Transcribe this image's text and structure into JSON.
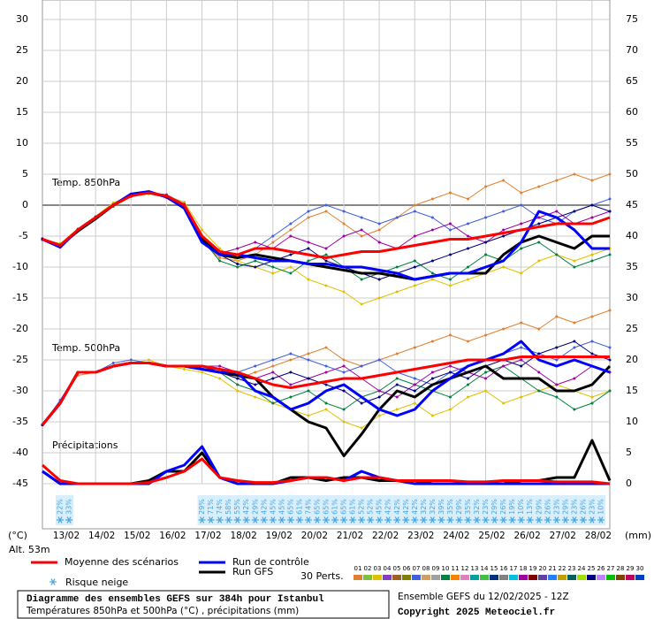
{
  "chart_data": {
    "type": "line",
    "title": "Diagramme des ensembles GEFS sur 384h pour Istanbul",
    "subtitle": "Températures 850hPa et 500hPa (°C) , précipitations (mm)",
    "ylabel": "(°C)",
    "y2label": "(mm)",
    "altitude": "Alt. 53m",
    "ylim": [
      -45,
      30
    ],
    "yticks": [
      -45,
      -40,
      -35,
      -30,
      -25,
      -20,
      -15,
      -10,
      -5,
      0,
      5,
      10,
      15,
      20,
      25,
      30
    ],
    "y2lim": [
      0,
      75
    ],
    "y2ticks": [
      0,
      5,
      10,
      15,
      20,
      25,
      30,
      35,
      40,
      45,
      50,
      55,
      60,
      65,
      70,
      75
    ],
    "grid": true,
    "categories": [
      "13/02",
      "14/02",
      "15/02",
      "16/02",
      "17/02",
      "18/02",
      "19/02",
      "20/02",
      "21/02",
      "22/02",
      "23/02",
      "24/02",
      "25/02",
      "26/02",
      "27/02",
      "28/02"
    ],
    "annotations": [
      "Temp. 850hPa",
      "Temp. 500hPa",
      "Précipitations"
    ],
    "series": [
      {
        "name": "Run GFS",
        "color": "#000000",
        "t850": [
          -5.5,
          -6.5,
          -4.2,
          -2.2,
          0,
          1.6,
          2,
          1.4,
          -0.2,
          -5.5,
          -8,
          -8.5,
          -8,
          -8.5,
          -9,
          -9.5,
          -10,
          -10.5,
          -11,
          -11,
          -11.5,
          -12,
          -11.5,
          -11,
          -11,
          -11,
          -8,
          -6,
          -5,
          -6,
          -7,
          -5,
          -5
        ],
        "t500": [
          -35.5,
          -32,
          -27,
          -27,
          -26,
          -25.5,
          -25.5,
          -26,
          -26,
          -26.5,
          -27,
          -27.5,
          -28,
          -31,
          -33,
          -35,
          -36,
          -40.5,
          -37,
          -33,
          -30,
          -31,
          -29,
          -28,
          -27,
          -26,
          -28,
          -28,
          -28,
          -30,
          -30,
          -29,
          -26
        ],
        "precip": [
          2,
          0,
          0,
          0,
          0,
          0,
          0.5,
          2,
          2,
          5,
          1,
          0,
          0,
          0,
          1,
          1,
          0.5,
          1,
          1,
          0.5,
          0.5,
          0.5,
          0,
          0,
          0,
          0,
          0,
          0.5,
          0.5,
          1,
          1,
          7,
          0.5
        ]
      },
      {
        "name": "Run de contrôle",
        "color": "#0000ff",
        "t850": [
          -5.5,
          -6.8,
          -4,
          -2,
          0,
          1.8,
          2.2,
          1.3,
          -0.5,
          -6,
          -8,
          -8,
          -8.5,
          -9,
          -9,
          -9.5,
          -9.5,
          -10,
          -10,
          -10.5,
          -11,
          -12,
          -11.5,
          -11,
          -11,
          -10,
          -9,
          -6,
          -1,
          -2,
          -4,
          -7,
          -7
        ],
        "t500": [
          -35.5,
          -32,
          -27,
          -27,
          -26,
          -25.5,
          -25.5,
          -26,
          -26,
          -26.5,
          -27,
          -27,
          -30,
          -31,
          -33,
          -32,
          -30,
          -29,
          -31,
          -33,
          -34,
          -33,
          -30,
          -28,
          -26,
          -25,
          -24,
          -22,
          -25,
          -26,
          -25,
          -26,
          -27
        ],
        "precip": [
          2,
          0,
          0,
          0,
          0,
          0,
          0,
          2,
          3,
          6,
          1,
          0,
          0,
          0,
          0.5,
          1,
          1,
          0.5,
          2,
          1,
          0.5,
          0,
          0,
          0,
          0,
          0,
          0,
          0,
          0,
          0,
          0,
          0,
          0
        ]
      },
      {
        "name": "Moyenne des scénarios",
        "color": "#ff0000",
        "t850": [
          -5.5,
          -6.5,
          -4,
          -2,
          0,
          1.5,
          2,
          1.5,
          0,
          -5,
          -7.5,
          -8,
          -7,
          -7,
          -7.5,
          -8,
          -8.5,
          -8,
          -7.5,
          -7.5,
          -7,
          -6.5,
          -6,
          -5.5,
          -5.5,
          -5,
          -4.5,
          -4,
          -3.5,
          -3,
          -3,
          -3,
          -2
        ],
        "t500": [
          -35.5,
          -32,
          -27,
          -27,
          -26,
          -25.5,
          -25.5,
          -26,
          -26,
          -26,
          -26.5,
          -27,
          -28,
          -29,
          -29.5,
          -29,
          -28.5,
          -28,
          -28,
          -27.5,
          -27,
          -26.5,
          -26,
          -25.5,
          -25,
          -25,
          -25,
          -24.5,
          -24.5,
          -24.5,
          -24.5,
          -24.5,
          -24.5
        ],
        "precip": [
          3,
          0.5,
          0,
          0,
          0,
          0,
          0.2,
          1,
          2,
          4,
          1,
          0.5,
          0.2,
          0.2,
          0.5,
          1,
          1,
          0.5,
          1,
          1,
          0.5,
          0.5,
          0.5,
          0.5,
          0.3,
          0.3,
          0.5,
          0.5,
          0.5,
          0.3,
          0.3,
          0.3,
          0
        ]
      }
    ],
    "perturbations": {
      "label": "30 Perts.",
      "members": [
        {
          "name": "01",
          "color": "#e08030",
          "t850": [
            -5.5,
            -6.8,
            -4.2,
            -2,
            0.2,
            1.8,
            2.2,
            1.2,
            -0.5,
            -6,
            -8.5,
            -9,
            -8,
            -6,
            -4,
            -2,
            -1,
            -3,
            -5,
            -4,
            -2,
            0,
            1,
            2,
            1,
            3,
            4,
            2,
            3,
            4,
            5,
            4,
            5
          ],
          "t500": [
            -35.5,
            -32,
            -27.5,
            -27,
            -26,
            -25.5,
            -25.5,
            -26,
            -26,
            -26,
            -27,
            -28,
            -27,
            -26,
            -25,
            -24,
            -23,
            -25,
            -26,
            -25,
            -24,
            -23,
            -22,
            -21,
            -22,
            -21,
            -20,
            -19,
            -20,
            -18,
            -19,
            -18,
            -17
          ]
        },
        {
          "name": "02",
          "color": "#80c040"
        },
        {
          "name": "03",
          "color": "#e0c000",
          "t850": [
            -5.5,
            -6.2,
            -3.8,
            -1.8,
            0.4,
            1.5,
            1.8,
            1.5,
            0.5,
            -4,
            -7,
            -9,
            -10,
            -11,
            -10,
            -12,
            -13,
            -14,
            -16,
            -15,
            -14,
            -13,
            -12,
            -13,
            -12,
            -11,
            -10,
            -11,
            -9,
            -8,
            -9,
            -8,
            -7
          ],
          "t500": [
            -35.5,
            -32,
            -27,
            -27,
            -26,
            -25.5,
            -25,
            -26,
            -26.5,
            -27,
            -28,
            -30,
            -31,
            -32,
            -33,
            -34,
            -33,
            -35,
            -36,
            -34,
            -33,
            -32,
            -34,
            -33,
            -31,
            -30,
            -32,
            -31,
            -30,
            -29,
            -30,
            -31,
            -30
          ]
        },
        {
          "name": "04",
          "color": "#8040c0"
        },
        {
          "name": "05",
          "color": "#a06020"
        },
        {
          "name": "06",
          "color": "#808000"
        },
        {
          "name": "07",
          "color": "#4060e0",
          "t850": [
            -5.6,
            -6.5,
            -4,
            -2,
            0,
            1.6,
            2,
            1.7,
            0.2,
            -5,
            -8,
            -8,
            -7,
            -5,
            -3,
            -1,
            0,
            -1,
            -2,
            -3,
            -2,
            -1,
            -2,
            -4,
            -3,
            -2,
            -1,
            0,
            -2,
            -3,
            -1,
            0,
            1
          ],
          "t500": [
            -35.5,
            -31.5,
            -27,
            -27,
            -25.5,
            -25,
            -25.5,
            -26,
            -26,
            -26.5,
            -27,
            -27,
            -26,
            -25,
            -24,
            -25,
            -26,
            -27,
            -26,
            -25,
            -27,
            -28,
            -29,
            -27,
            -26,
            -25,
            -24,
            -23,
            -24,
            -25,
            -23,
            -22,
            -23
          ]
        },
        {
          "name": "08",
          "color": "#d0a060"
        },
        {
          "name": "09",
          "color": "#a0a0a0"
        },
        {
          "name": "10",
          "color": "#008040",
          "t850": [
            -5.5,
            -6.6,
            -4.1,
            -2.2,
            -0.2,
            1.4,
            2,
            1.4,
            -0.2,
            -5.5,
            -9,
            -10,
            -9,
            -10,
            -11,
            -9,
            -8,
            -10,
            -12,
            -11,
            -10,
            -9,
            -11,
            -12,
            -10,
            -8,
            -9,
            -7,
            -6,
            -8,
            -10,
            -9,
            -8
          ],
          "t500": [
            -35.5,
            -32,
            -27,
            -27,
            -26,
            -25.5,
            -25.5,
            -26,
            -26,
            -26,
            -27,
            -29,
            -30,
            -32,
            -31,
            -30,
            -32,
            -33,
            -31,
            -30,
            -28,
            -29,
            -30,
            -31,
            -29,
            -27,
            -26,
            -28,
            -30,
            -31,
            -33,
            -32,
            -30
          ]
        },
        {
          "name": "11",
          "color": "#ff8000"
        },
        {
          "name": "12",
          "color": "#e080c0"
        },
        {
          "name": "13",
          "color": "#00a0a0"
        },
        {
          "name": "14",
          "color": "#40c040"
        },
        {
          "name": "15",
          "color": "#003080"
        },
        {
          "name": "16",
          "color": "#808080"
        },
        {
          "name": "17",
          "color": "#00c0e0"
        },
        {
          "name": "18",
          "color": "#a000a0",
          "t850": [
            -5.4,
            -6.4,
            -3.9,
            -1.9,
            0.1,
            1.7,
            2.1,
            1.6,
            0.1,
            -5.2,
            -7.8,
            -7,
            -6,
            -7,
            -5,
            -6,
            -7,
            -5,
            -4,
            -6,
            -7,
            -5,
            -4,
            -3,
            -5,
            -6,
            -4,
            -3,
            -2,
            -1,
            -3,
            -2,
            -1
          ],
          "t500": [
            -35.5,
            -32,
            -27,
            -27,
            -26,
            -25.5,
            -25.5,
            -26,
            -26,
            -26,
            -26,
            -27,
            -28,
            -27,
            -29,
            -28,
            -27,
            -26,
            -28,
            -30,
            -31,
            -29,
            -27,
            -26,
            -27,
            -28,
            -26,
            -25,
            -27,
            -29,
            -28,
            -26,
            -27
          ]
        },
        {
          "name": "19",
          "color": "#800000"
        },
        {
          "name": "20",
          "color": "#6040a0"
        },
        {
          "name": "21",
          "color": "#2080ff"
        },
        {
          "name": "22",
          "color": "#c0a000"
        },
        {
          "name": "23",
          "color": "#006060"
        },
        {
          "name": "24",
          "color": "#a0e000"
        },
        {
          "name": "25",
          "color": "#000080",
          "t850": [
            -5.5,
            -6.5,
            -4,
            -2,
            0,
            1.5,
            2,
            1.5,
            0,
            -5,
            -8,
            -9.5,
            -10,
            -9,
            -8,
            -7,
            -9,
            -10,
            -11,
            -12,
            -11,
            -10,
            -9,
            -8,
            -7,
            -6,
            -5,
            -4,
            -3,
            -2,
            -1,
            0,
            -1
          ],
          "t500": [
            -35.5,
            -32,
            -27,
            -27,
            -26,
            -25.5,
            -25.5,
            -26,
            -26,
            -26,
            -27,
            -28,
            -29,
            -28,
            -27,
            -28,
            -29,
            -30,
            -32,
            -31,
            -29,
            -30,
            -28,
            -27,
            -28,
            -26,
            -25,
            -26,
            -24,
            -23,
            -22,
            -24,
            -25
          ]
        },
        {
          "name": "26",
          "color": "#c080ff"
        },
        {
          "name": "27",
          "color": "#00c000"
        },
        {
          "name": "28",
          "color": "#804000"
        },
        {
          "name": "29",
          "color": "#c00060"
        },
        {
          "name": "30",
          "color": "#0040c0"
        }
      ]
    },
    "snow": {
      "name": "Risque neige",
      "color": "#4aa8e0",
      "values": [
        null,
        null,
        22,
        33,
        null,
        null,
        null,
        null,
        null,
        null,
        null,
        null,
        null,
        null,
        null,
        null,
        null,
        null,
        29,
        71,
        74,
        58,
        55,
        42,
        29,
        42,
        45,
        45,
        65,
        61,
        74,
        65,
        65,
        61,
        65,
        61,
        52,
        52,
        45,
        42,
        42,
        42,
        42,
        32,
        32,
        39,
        35,
        29,
        35,
        32,
        23,
        29,
        26,
        19,
        10,
        13,
        29,
        26,
        23,
        29,
        23,
        26,
        23,
        10,
        null
      ],
      "value_labels": [
        null,
        null,
        "22%",
        "33%",
        null,
        null,
        null,
        null,
        null,
        null,
        null,
        null,
        null,
        null,
        null,
        null,
        null,
        null,
        "29%",
        "71%",
        "74%",
        "58%",
        "55%",
        "42%",
        "29%",
        "42%",
        "45%",
        "45%",
        "65%",
        "61%",
        "74%",
        "65%",
        "65%",
        "61%",
        "65%",
        "61%",
        "52%",
        "52%",
        "45%",
        "42%",
        "42%",
        "42%",
        "42%",
        "32%",
        "32%",
        "39%",
        "35%",
        "29%",
        "35%",
        "32%",
        "23%",
        "29%",
        "26%",
        "19%",
        "10%",
        "13%",
        "29%",
        "26%",
        "23%",
        "29%",
        "23%",
        "26%",
        "23%",
        "10%",
        null
      ]
    },
    "ensemble": "Ensemble GEFS du 12/02/2025 - 12Z",
    "copyright": "Copyright 2025 Meteociel.fr"
  }
}
